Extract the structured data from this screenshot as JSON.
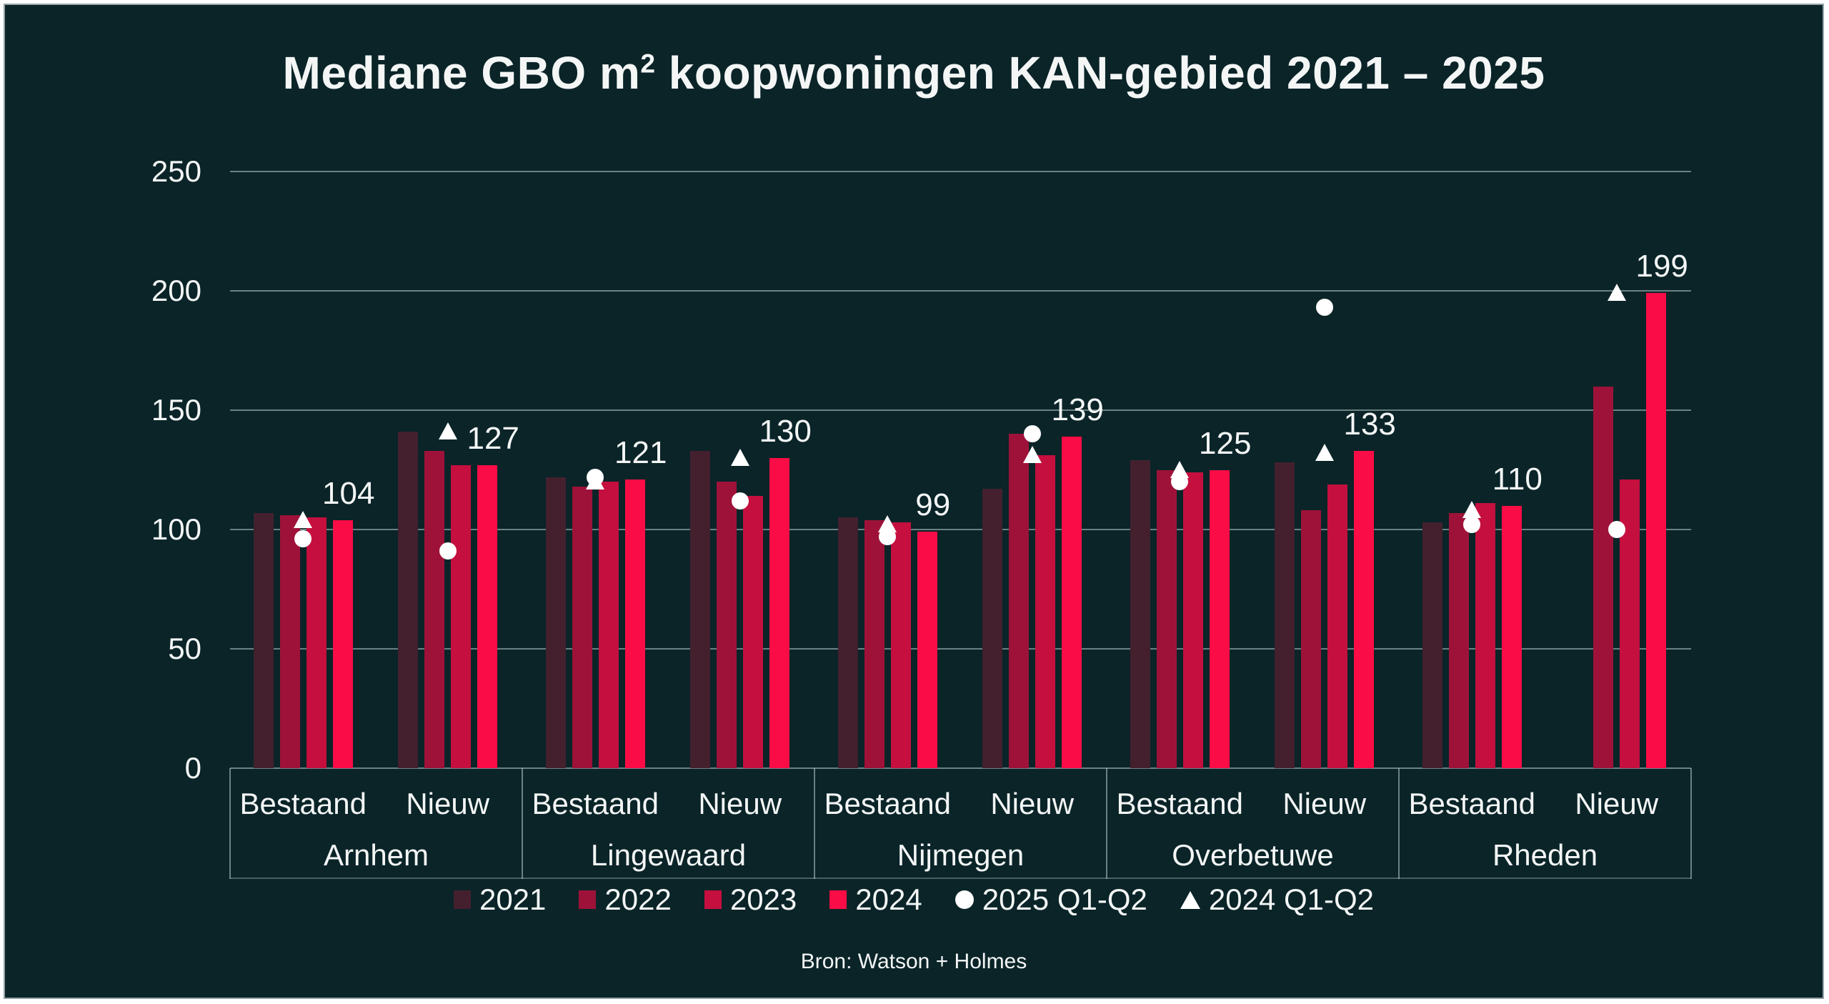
{
  "title": {
    "pre": "Mediane GBO m",
    "sup": "2",
    "post": " koopwoningen KAN-gebied 2021 – 2025"
  },
  "source": "Bron: Watson + Holmes",
  "colors": {
    "background": "#0a2428",
    "frame_border": "#95a4a8",
    "text": "#f4f6f6",
    "gridline": "#becdce",
    "series_2021": "#44202e",
    "series_2022": "#9e1239",
    "series_2023": "#c50f3f",
    "series_2024": "#fa0c46",
    "marker": "#ffffff"
  },
  "legend": [
    {
      "label": "2021",
      "shape": "square",
      "color": "#44202e"
    },
    {
      "label": "2022",
      "shape": "square",
      "color": "#9e1239"
    },
    {
      "label": "2023",
      "shape": "square",
      "color": "#c50f3f"
    },
    {
      "label": "2024",
      "shape": "square",
      "color": "#fa0c46"
    },
    {
      "label": "2025 Q1-Q2",
      "shape": "circle",
      "color": "#ffffff"
    },
    {
      "label": "2024 Q1-Q2",
      "shape": "triangle",
      "color": "#ffffff"
    }
  ],
  "chart_data": {
    "type": "bar",
    "title": "Mediane GBO m² koopwoningen KAN-gebied 2021 – 2025",
    "ylabel": "",
    "xlabel": "",
    "ylim": [
      0,
      250
    ],
    "yticks": [
      0,
      50,
      100,
      150,
      200,
      250
    ],
    "grid": true,
    "legend_position": "bottom",
    "series_years": [
      "2021",
      "2022",
      "2023",
      "2024"
    ],
    "marker_series": [
      "2025 Q1-Q2 (circle)",
      "2024 Q1-Q2 (triangle)"
    ],
    "groups": [
      {
        "city": "Arnhem",
        "subgroups": [
          {
            "label": "Bestaand",
            "bars": [
              107,
              106,
              105,
              104
            ],
            "circle_2025_q1q2": 96,
            "triangle_2024_q1q2": 104,
            "data_label": "104"
          },
          {
            "label": "Nieuw",
            "bars": [
              141,
              133,
              127,
              127
            ],
            "circle_2025_q1q2": 91,
            "triangle_2024_q1q2": 141,
            "data_label": "127"
          }
        ]
      },
      {
        "city": "Lingewaard",
        "subgroups": [
          {
            "label": "Bestaand",
            "bars": [
              122,
              118,
              120,
              121
            ],
            "circle_2025_q1q2": 122,
            "triangle_2024_q1q2": 120,
            "data_label": "121"
          },
          {
            "label": "Nieuw",
            "bars": [
              133,
              120,
              114,
              130
            ],
            "circle_2025_q1q2": 112,
            "triangle_2024_q1q2": 130,
            "data_label": "130"
          }
        ]
      },
      {
        "city": "Nijmegen",
        "subgroups": [
          {
            "label": "Bestaand",
            "bars": [
              105,
              104,
              103,
              99
            ],
            "circle_2025_q1q2": 97,
            "triangle_2024_q1q2": 102,
            "data_label": "99"
          },
          {
            "label": "Nieuw",
            "bars": [
              117,
              140,
              131,
              139
            ],
            "circle_2025_q1q2": 140,
            "triangle_2024_q1q2": 131,
            "data_label": "139"
          }
        ]
      },
      {
        "city": "Overbetuwe",
        "subgroups": [
          {
            "label": "Bestaand",
            "bars": [
              129,
              125,
              124,
              125
            ],
            "circle_2025_q1q2": 120,
            "triangle_2024_q1q2": 125,
            "data_label": "125"
          },
          {
            "label": "Nieuw",
            "bars": [
              128,
              108,
              119,
              133
            ],
            "circle_2025_q1q2": 193,
            "triangle_2024_q1q2": 132,
            "data_label": "133"
          }
        ]
      },
      {
        "city": "Rheden",
        "subgroups": [
          {
            "label": "Bestaand",
            "bars": [
              103,
              107,
              111,
              110
            ],
            "circle_2025_q1q2": 102,
            "triangle_2024_q1q2": 108,
            "data_label": "110"
          },
          {
            "label": "Nieuw",
            "bars": [
              null,
              160,
              121,
              199
            ],
            "circle_2025_q1q2": 100,
            "triangle_2024_q1q2": 199,
            "data_label": "199"
          }
        ]
      }
    ]
  }
}
